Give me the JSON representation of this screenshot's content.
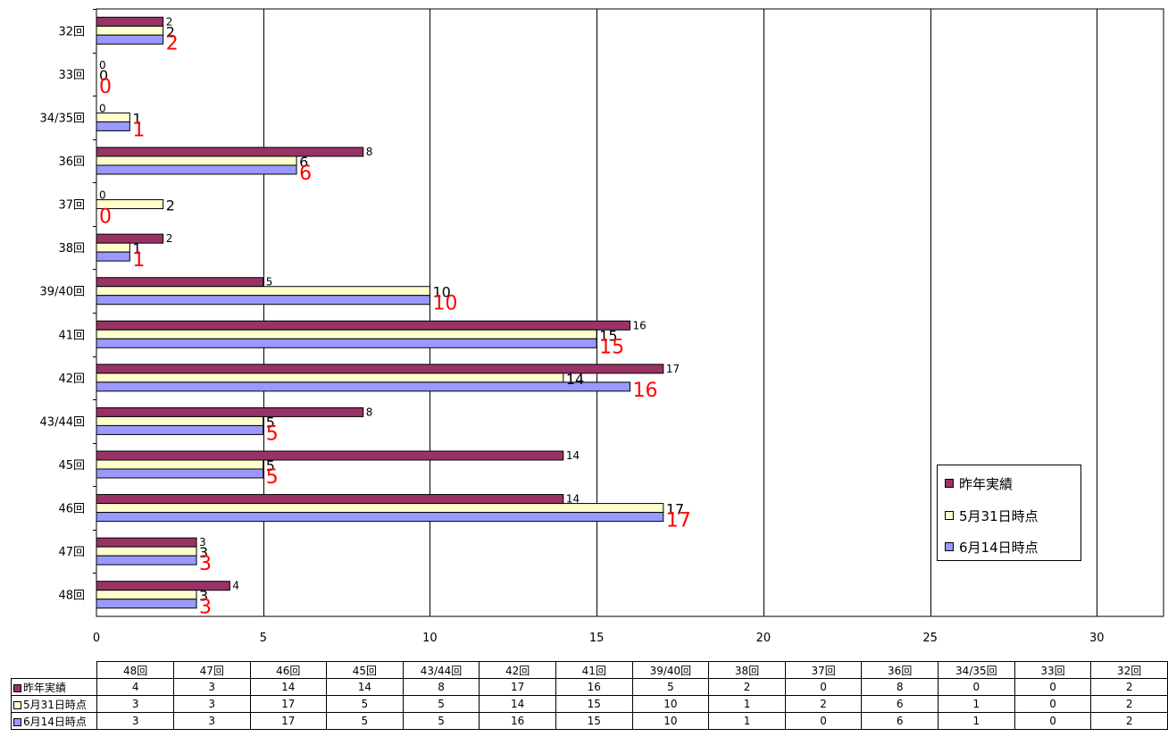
{
  "chart_data": {
    "type": "bar",
    "orientation": "horizontal",
    "categories": [
      "32回",
      "33回",
      "34/35回",
      "36回",
      "37回",
      "38回",
      "39/40回",
      "41回",
      "42回",
      "43/44回",
      "45回",
      "46回",
      "47回",
      "48回"
    ],
    "series": [
      {
        "name": "昨年実績",
        "color": "#993366",
        "values": [
          2,
          0,
          0,
          8,
          0,
          2,
          5,
          16,
          17,
          8,
          14,
          14,
          3,
          4
        ]
      },
      {
        "name": "5月31日時点",
        "color": "#ffffcc",
        "values": [
          2,
          0,
          1,
          6,
          2,
          1,
          10,
          15,
          14,
          5,
          5,
          17,
          3,
          3
        ]
      },
      {
        "name": "6月14日時点",
        "color": "#9999ff",
        "values": [
          2,
          0,
          1,
          6,
          0,
          1,
          10,
          15,
          16,
          5,
          5,
          17,
          3,
          3
        ]
      }
    ],
    "xlim": [
      0,
      32
    ],
    "xticks": [
      "0",
      "5",
      "10",
      "15",
      "20",
      "25",
      "30"
    ],
    "grid": true,
    "legend_position": "right"
  },
  "table": {
    "columns": [
      "48回",
      "47回",
      "46回",
      "45回",
      "43/44回",
      "42回",
      "41回",
      "39/40回",
      "38回",
      "37回",
      "36回",
      "34/35回",
      "33回",
      "32回"
    ],
    "rows": [
      {
        "name": "昨年実績",
        "color": "#993366",
        "values": [
          4,
          3,
          14,
          14,
          8,
          17,
          16,
          5,
          2,
          0,
          8,
          0,
          0,
          2
        ]
      },
      {
        "name": "5月31日時点",
        "color": "#ffffcc",
        "values": [
          3,
          3,
          17,
          5,
          5,
          14,
          15,
          10,
          1,
          2,
          6,
          1,
          0,
          2
        ]
      },
      {
        "name": "6月14日時点",
        "color": "#9999ff",
        "values": [
          3,
          3,
          17,
          5,
          5,
          16,
          15,
          10,
          1,
          0,
          6,
          1,
          0,
          2
        ]
      }
    ]
  },
  "legend": {
    "items": [
      {
        "label": "昨年実績",
        "color": "#993366"
      },
      {
        "label": "5月31日時点",
        "color": "#ffffcc"
      },
      {
        "label": "6月14日時点",
        "color": "#9999ff"
      }
    ]
  }
}
